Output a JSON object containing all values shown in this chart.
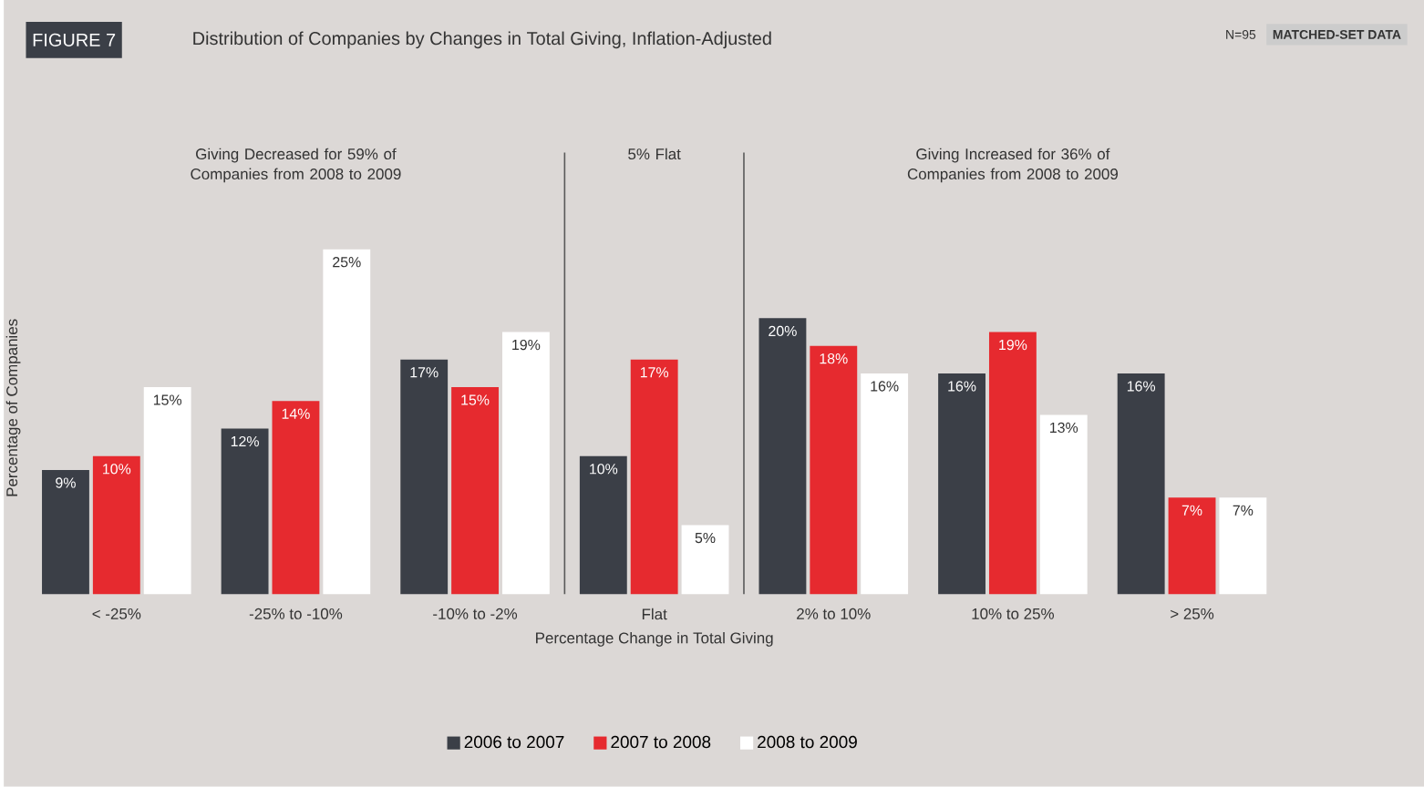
{
  "chart_data": {
    "type": "bar",
    "title": "Distribution of Companies by Changes in Total Giving, Inflation-Adjusted",
    "annotations": [
      "FIGURE 7",
      "N=95",
      "MATCHED-SET DATA",
      "Giving Decreased for 59% of Companies from 2008 to 2009",
      "5% Flat",
      "Giving Increased for 36% of Companies from 2008 to 2009"
    ],
    "xlabel": "Percentage Change in Total Giving",
    "ylabel": "Percentage of Companies",
    "categories": [
      "< -25%",
      "-25% to -10%",
      "-10% to -2%",
      "Flat",
      "2% to 10%",
      "10% to 25%",
      "> 25%"
    ],
    "series": [
      {
        "name": "2006 to 2007",
        "color": "#3b3f47",
        "values": [
          9,
          12,
          17,
          10,
          20,
          16,
          16
        ],
        "value_labels": [
          "9%",
          "12%",
          "17%",
          "10%",
          "20%",
          "16%",
          "16%"
        ]
      },
      {
        "name": "2007 to 2008",
        "color": "#e62a2f",
        "values": [
          10,
          14,
          15,
          17,
          18,
          19,
          7
        ],
        "value_labels": [
          "10%",
          "14%",
          "15%",
          "17%",
          "18%",
          "19%",
          "7%"
        ]
      },
      {
        "name": "2008 to 2009",
        "color": "#ffffff",
        "values": [
          15,
          25,
          19,
          5,
          16,
          13,
          7
        ],
        "value_labels": [
          "15%",
          "25%",
          "19%",
          "5%",
          "16%",
          "13%",
          "7%"
        ]
      }
    ],
    "tick_labels": "x",
    "legend": "bottom"
  }
}
